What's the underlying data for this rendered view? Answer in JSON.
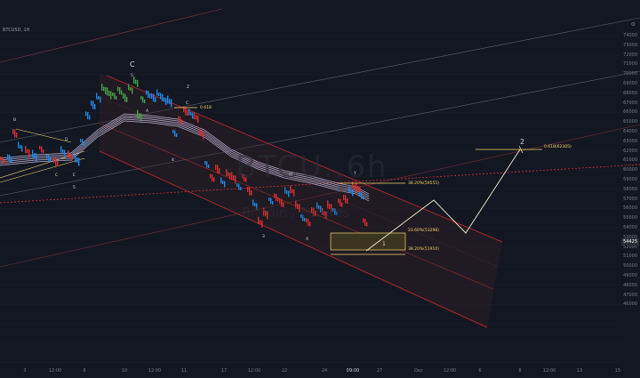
{
  "header": {
    "symbol": "BTCUSD, 1H",
    "settings_icon": "gear-icon"
  },
  "watermark": {
    "ticker": "BTCU..6h",
    "name": "Bitcoin / Futures"
  },
  "price_axis": {
    "ticks": [
      "74000",
      "73000",
      "72000",
      "71000",
      "70000",
      "69000",
      "68000",
      "67000",
      "66000",
      "65000",
      "64000",
      "63000",
      "62000",
      "61000",
      "60000",
      "59000",
      "58000",
      "57000",
      "56000",
      "55000",
      "54000",
      "53000",
      "52000",
      "51000",
      "50000",
      "49000",
      "48000",
      "47000",
      "46000"
    ],
    "current_price": "54425"
  },
  "time_axis": {
    "ticks": [
      "3",
      "12:00",
      "8",
      "10",
      "12:00",
      "11",
      "17",
      "12:00",
      "22",
      "24",
      "09:00",
      "27",
      "Dec",
      "12:00",
      "6",
      "8",
      "12:00",
      "13",
      "15"
    ],
    "highlighted": "09:00"
  },
  "wave_labels": {
    "major": [
      "C",
      "2",
      "1"
    ],
    "minor": [
      "B",
      "D",
      "C",
      "E",
      "W",
      "A",
      "C",
      "Y",
      "X",
      "Z",
      "4",
      "5",
      "3",
      "5"
    ]
  },
  "fib_levels": {
    "fib_618_top": "0.618",
    "fib_382_mid": "38.20%(59555)",
    "fib_236": "23.60%(53298)",
    "fib_382_low": "38.20%(51910)",
    "fib_618_target": "0.618(62305)"
  },
  "colors": {
    "background": "#131722",
    "candle_up": "#1e88e5",
    "candle_mid": "#43a047",
    "candle_down": "#d32f2f",
    "channel": "#c62828",
    "ribbon": "#d1c4e9",
    "fib": "#f9d66b",
    "projection": "#f5f0c8"
  }
}
